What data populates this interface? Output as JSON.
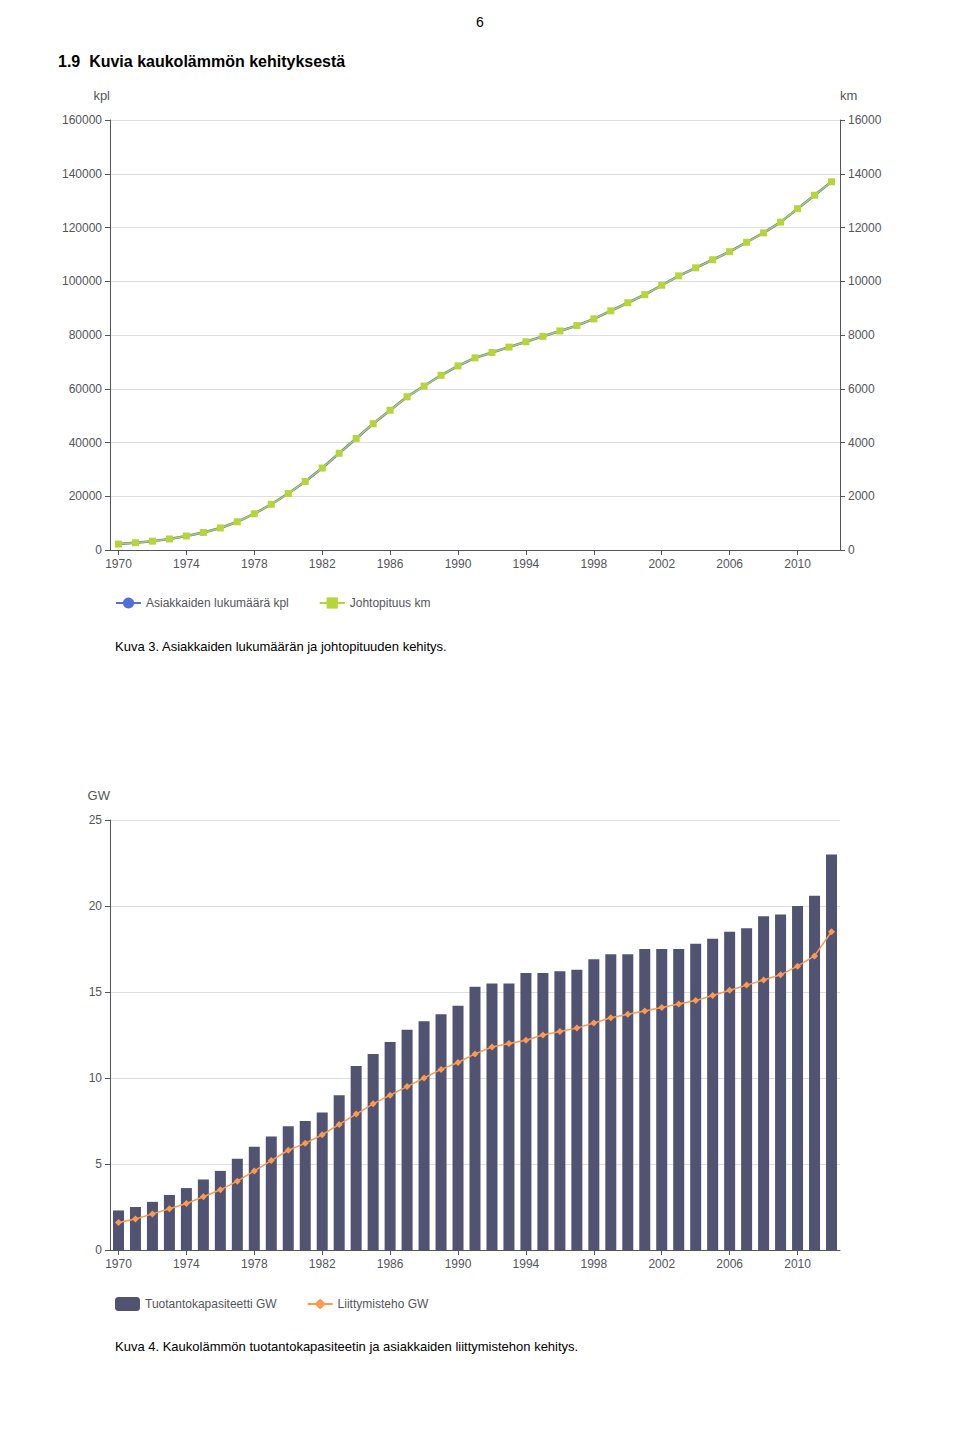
{
  "page_number": "6",
  "title": "1.9  Kuvia kaukolämmön kehityksestä",
  "chart_data": [
    {
      "type": "line",
      "caption": "Kuva 3. Asiakkaiden lukumäärän ja johtopituuden kehitys.",
      "x": [
        1970,
        1971,
        1972,
        1973,
        1974,
        1975,
        1976,
        1977,
        1978,
        1979,
        1980,
        1981,
        1982,
        1983,
        1984,
        1985,
        1986,
        1987,
        1988,
        1989,
        1990,
        1991,
        1992,
        1993,
        1994,
        1995,
        1996,
        1997,
        1998,
        1999,
        2000,
        2001,
        2002,
        2003,
        2004,
        2005,
        2006,
        2007,
        2008,
        2009,
        2010,
        2011,
        2012
      ],
      "xlim": [
        1969.5,
        2012.5
      ],
      "xticks": [
        1970,
        1974,
        1978,
        1982,
        1986,
        1990,
        1994,
        1998,
        2002,
        2006,
        2010
      ],
      "ylabel": "kpl",
      "y2label": "km",
      "ylim": [
        0,
        160000
      ],
      "yticks": [
        0,
        20000,
        40000,
        60000,
        80000,
        100000,
        120000,
        140000,
        160000
      ],
      "y2lim": [
        0,
        16000
      ],
      "y2ticks": [
        0,
        2000,
        4000,
        6000,
        8000,
        10000,
        12000,
        14000,
        16000
      ],
      "grid": true,
      "legend": "bottom",
      "series": [
        {
          "name": "Asiakkaiden lukumäärä kpl",
          "marker": "none",
          "values": [
            2200,
            2700,
            3300,
            4100,
            5200,
            6500,
            8200,
            10500,
            13500,
            17000,
            21000,
            25500,
            30500,
            36000,
            41500,
            47000,
            52000,
            57000,
            61000,
            65000,
            68500,
            71500,
            73500,
            75500,
            77500,
            79500,
            81500,
            83500,
            86000,
            89000,
            92000,
            95000,
            98500,
            102000,
            105000,
            108000,
            111000,
            114500,
            118000,
            122000,
            127000,
            132000,
            137000
          ]
        },
        {
          "name": "Johtopituus km",
          "axis": "y2",
          "marker": "square",
          "values": [
            220,
            270,
            330,
            410,
            520,
            650,
            820,
            1050,
            1350,
            1700,
            2100,
            2550,
            3050,
            3600,
            4150,
            4700,
            5200,
            5700,
            6100,
            6500,
            6850,
            7150,
            7350,
            7550,
            7750,
            7950,
            8150,
            8350,
            8600,
            8900,
            9200,
            9500,
            9850,
            10200,
            10500,
            10800,
            11100,
            11450,
            11800,
            12200,
            12700,
            13200,
            13700
          ]
        }
      ]
    },
    {
      "type": "bar",
      "caption": "Kuva 4. Kaukolämmön tuotantokapasiteetin ja asiakkaiden liittymistehon kehitys.",
      "x": [
        1970,
        1971,
        1972,
        1973,
        1974,
        1975,
        1976,
        1977,
        1978,
        1979,
        1980,
        1981,
        1982,
        1983,
        1984,
        1985,
        1986,
        1987,
        1988,
        1989,
        1990,
        1991,
        1992,
        1993,
        1994,
        1995,
        1996,
        1997,
        1998,
        1999,
        2000,
        2001,
        2002,
        2003,
        2004,
        2005,
        2006,
        2007,
        2008,
        2009,
        2010,
        2011,
        2012
      ],
      "xlim": [
        1969.5,
        2012.5
      ],
      "xticks": [
        1970,
        1974,
        1978,
        1982,
        1986,
        1990,
        1994,
        1998,
        2002,
        2006,
        2010
      ],
      "ylabel": "GW",
      "ylim": [
        0,
        25
      ],
      "yticks": [
        0,
        5,
        10,
        15,
        20,
        25
      ],
      "grid": true,
      "legend": "bottom",
      "series": [
        {
          "name": "Tuotantokapasiteetti GW",
          "type": "bar",
          "values": [
            2.3,
            2.5,
            2.8,
            3.2,
            3.6,
            4.1,
            4.6,
            5.3,
            6.0,
            6.6,
            7.2,
            7.5,
            8.0,
            9.0,
            10.7,
            11.4,
            12.1,
            12.8,
            13.3,
            13.7,
            14.2,
            15.3,
            15.5,
            15.5,
            16.1,
            16.1,
            16.2,
            16.3,
            16.9,
            17.2,
            17.2,
            17.5,
            17.5,
            17.5,
            17.8,
            18.1,
            18.5,
            18.7,
            19.4,
            19.5,
            20.0,
            20.6,
            23.0
          ]
        },
        {
          "name": "Liittymisteho GW",
          "type": "line",
          "marker": "diamond",
          "values": [
            1.6,
            1.8,
            2.1,
            2.4,
            2.7,
            3.1,
            3.5,
            4.0,
            4.6,
            5.2,
            5.8,
            6.2,
            6.7,
            7.3,
            7.9,
            8.5,
            9.0,
            9.5,
            10.0,
            10.5,
            10.9,
            11.4,
            11.8,
            12.0,
            12.2,
            12.5,
            12.7,
            12.9,
            13.2,
            13.5,
            13.7,
            13.9,
            14.1,
            14.3,
            14.5,
            14.8,
            15.1,
            15.4,
            15.7,
            16.0,
            16.5,
            17.1,
            18.5
          ]
        }
      ]
    }
  ]
}
